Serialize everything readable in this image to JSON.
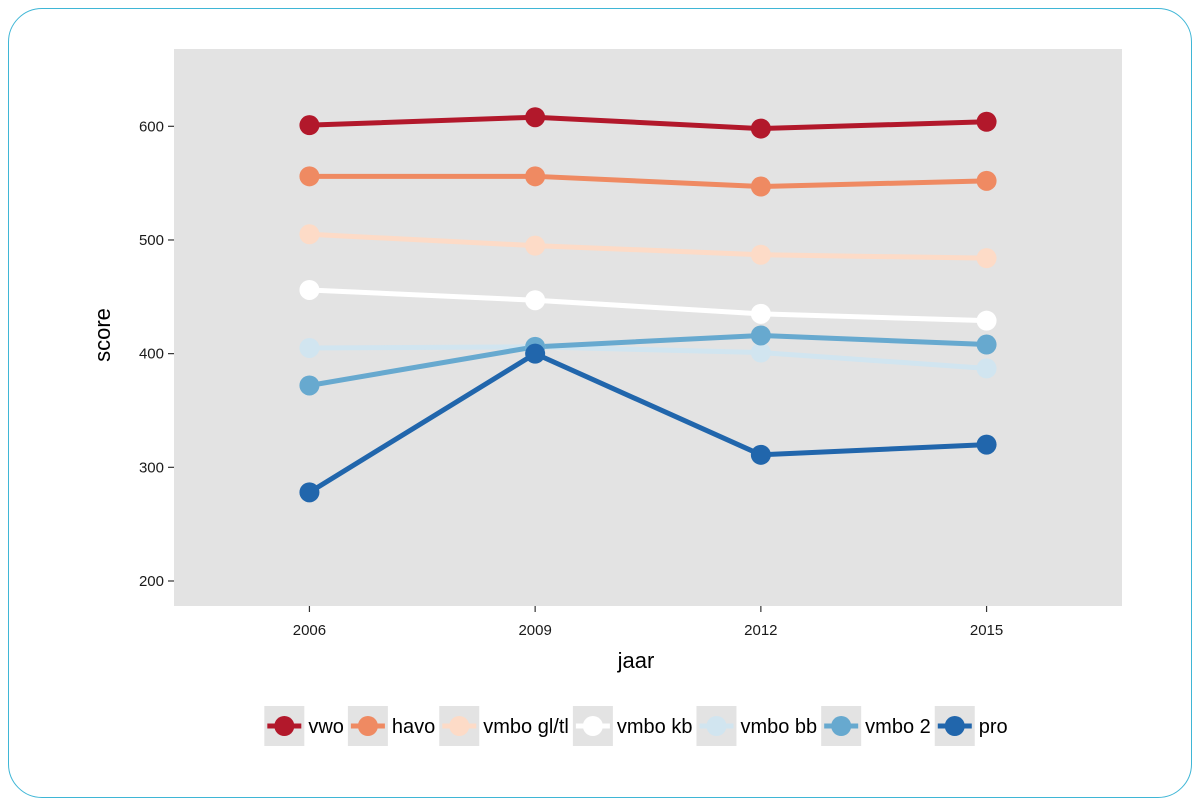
{
  "chart_data": {
    "type": "line",
    "xlabel": "jaar",
    "ylabel": "score",
    "x": [
      2006,
      2009,
      2012,
      2015
    ],
    "x_tick_labels": [
      "2006",
      "2009",
      "2012",
      "2015"
    ],
    "xlim": [
      2004.2,
      2016.8
    ],
    "ylim": [
      178,
      668
    ],
    "y_ticks": [
      200,
      300,
      400,
      500,
      600
    ],
    "y_tick_labels": [
      "200",
      "300",
      "400",
      "500",
      "600"
    ],
    "grid": false,
    "panel_background": "#e3e3e3",
    "legend_position": "bottom",
    "series": [
      {
        "name": "vwo",
        "color": "#b2182b",
        "values": [
          601,
          608,
          598,
          604
        ]
      },
      {
        "name": "havo",
        "color": "#ef8a62",
        "values": [
          556,
          556,
          547,
          552
        ]
      },
      {
        "name": "vmbo gl/tl",
        "color": "#fddbc7",
        "values": [
          505,
          495,
          487,
          484
        ]
      },
      {
        "name": "vmbo kb",
        "color": "#ffffff",
        "values": [
          456,
          447,
          435,
          429
        ]
      },
      {
        "name": "vmbo bb",
        "color": "#d1e5f0",
        "values": [
          405,
          406,
          401,
          387
        ]
      },
      {
        "name": "vmbo 2",
        "color": "#67a9cf",
        "values": [
          372,
          406,
          416,
          408
        ]
      },
      {
        "name": "pro",
        "color": "#2166ac",
        "values": [
          278,
          400,
          311,
          320
        ]
      }
    ]
  }
}
